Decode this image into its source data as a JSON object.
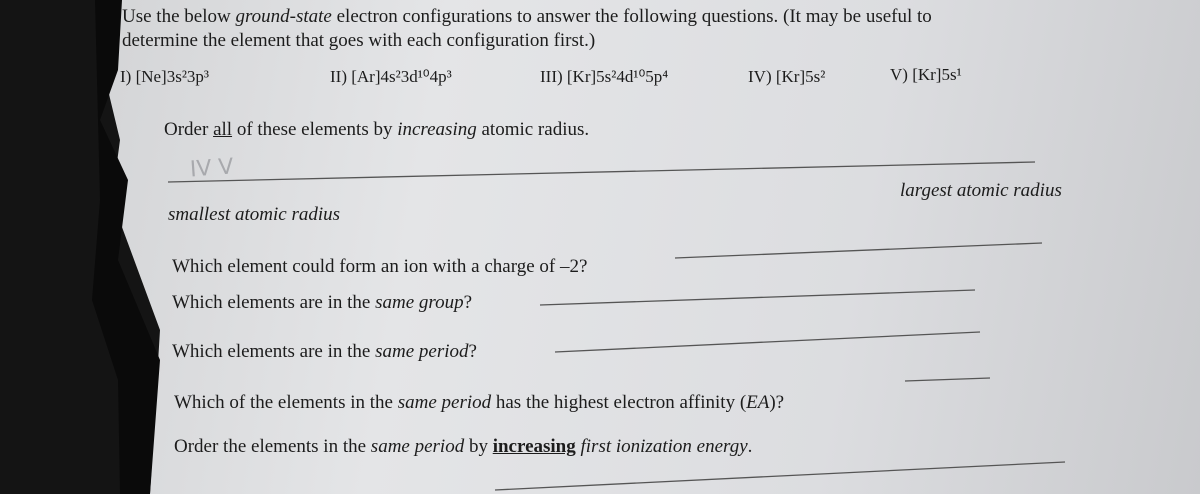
{
  "intro": {
    "line1": [
      "Use the below ",
      "ground-state",
      " electron configurations to answer the following questions. (It may be useful to"
    ],
    "line2": "determine the element that goes with each configuration first.)"
  },
  "configurations": [
    "I) [Ne]3s²3p³",
    "II) [Ar]4s²3d¹⁰4p³",
    "III) [Kr]5s²4d¹⁰5p⁴",
    "IV) [Kr]5s²",
    "V) [Kr]5s¹"
  ],
  "questions": [
    {
      "parts": [
        "Order ",
        "all",
        " of these elements by ",
        "increasing",
        " atomic radius."
      ]
    },
    {
      "parts": [
        "Which element could form an ion with a charge of –2?"
      ]
    },
    {
      "parts": [
        "Which elements are in the ",
        "same group",
        "?"
      ]
    },
    {
      "parts": [
        "Which elements are in the ",
        "same period",
        "?"
      ]
    },
    {
      "parts": [
        "Which of the elements in the ",
        "same period",
        " has the highest electron affinity (",
        "EA",
        ")?"
      ]
    },
    {
      "parts": [
        "Order the elements in the ",
        "same period",
        " by ",
        "increasing",
        " first ionization energy",
        "."
      ]
    }
  ],
  "scale": {
    "smallest": "smallest atomic radius",
    "largest": "largest atomic radius"
  },
  "handwriting": "IV V"
}
